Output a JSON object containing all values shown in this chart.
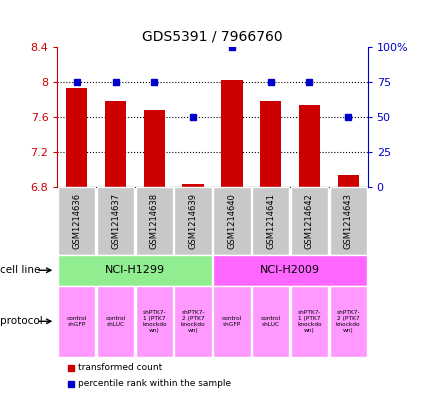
{
  "title": "GDS5391 / 7966760",
  "samples": [
    "GSM1214636",
    "GSM1214637",
    "GSM1214638",
    "GSM1214639",
    "GSM1214640",
    "GSM1214641",
    "GSM1214642",
    "GSM1214643"
  ],
  "bar_values": [
    7.93,
    7.78,
    7.68,
    6.83,
    8.02,
    7.78,
    7.74,
    6.93
  ],
  "dot_values": [
    75,
    75,
    75,
    50,
    100,
    75,
    75,
    50
  ],
  "bar_bottom": 6.8,
  "ylim_left": [
    6.8,
    8.4
  ],
  "ylim_right": [
    0,
    100
  ],
  "yticks_left": [
    6.8,
    7.2,
    7.6,
    8.0,
    8.4
  ],
  "yticks_right": [
    0,
    25,
    50,
    75,
    100
  ],
  "ytick_labels_left": [
    "6.8",
    "7.2",
    "7.6",
    "8",
    "8.4"
  ],
  "ytick_labels_right": [
    "0",
    "25",
    "50",
    "75",
    "100%"
  ],
  "cell_line_groups": [
    {
      "label": "NCI-H1299",
      "start": 0,
      "end": 3,
      "color": "#90EE90"
    },
    {
      "label": "NCI-H2009",
      "start": 4,
      "end": 7,
      "color": "#FF66FF"
    }
  ],
  "protocols": [
    {
      "label": "control\nshGFP"
    },
    {
      "label": "control\nshLUC"
    },
    {
      "label": "shPTK7-\n1 (PTK7\nknockdo\nwn)"
    },
    {
      "label": "shPTK7-\n2 (PTK7\nknockdo\nwn)"
    },
    {
      "label": "control\nshGFP"
    },
    {
      "label": "control\nshLUC"
    },
    {
      "label": "shPTK7-\n1 (PTK7\nknockdo\nwn)"
    },
    {
      "label": "shPTK7-\n2 (PTK7\nknockdo\nwn)"
    }
  ],
  "protocol_color": "#FF99FF",
  "bar_color": "#CC0000",
  "dot_color": "#0000CC",
  "tick_color_left": "#CC0000",
  "tick_color_right": "#0000CC",
  "legend_bar_label": "transformed count",
  "legend_dot_label": "percentile rank within the sample",
  "cell_line_label": "cell line",
  "protocol_label": "protocol",
  "sample_bg_color": "#C8C8C8",
  "grid_linestyle": ":",
  "grid_linewidth": 0.8
}
